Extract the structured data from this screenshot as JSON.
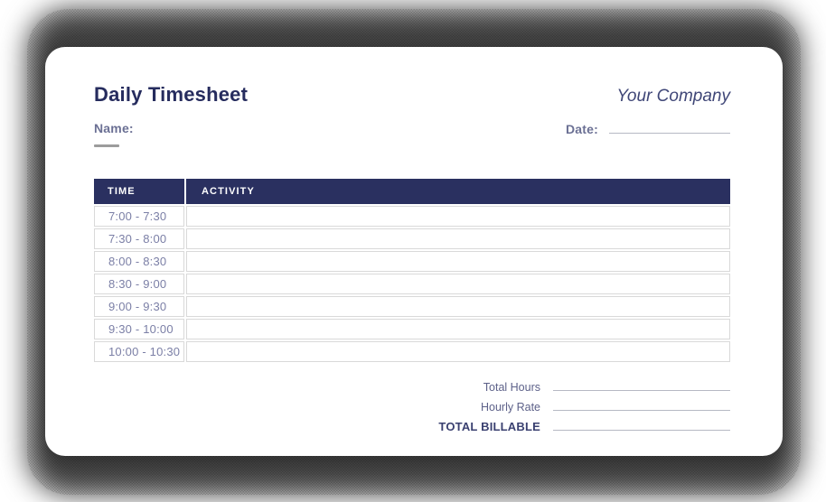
{
  "header": {
    "title": "Daily Timesheet",
    "company": "Your Company"
  },
  "fields": {
    "name": {
      "label": "Name:",
      "value": ""
    },
    "date": {
      "label": "Date:",
      "value": ""
    }
  },
  "table": {
    "columns": [
      {
        "key": "time",
        "label": "TIME"
      },
      {
        "key": "activity",
        "label": "ACTIVITY"
      }
    ],
    "rows": [
      {
        "time": "7:00 - 7:30",
        "activity": ""
      },
      {
        "time": "7:30 - 8:00",
        "activity": ""
      },
      {
        "time": "8:00 - 8:30",
        "activity": ""
      },
      {
        "time": "8:30 - 9:00",
        "activity": ""
      },
      {
        "time": "9:00 - 9:30",
        "activity": ""
      },
      {
        "time": "9:30 - 10:00",
        "activity": ""
      },
      {
        "time": "10:00 - 10:30",
        "activity": ""
      }
    ]
  },
  "totals": [
    {
      "label": "Total Hours",
      "value": "",
      "emphasis": false
    },
    {
      "label": "Hourly Rate",
      "value": "",
      "emphasis": false
    },
    {
      "label": "TOTAL BILLABLE",
      "value": "",
      "emphasis": true
    }
  ],
  "colors": {
    "header_navy": "#2a3060",
    "title_navy": "#262c5e",
    "company_indigo": "#3f4677",
    "muted_label": "#6b7094",
    "row_text": "#7b7fa6",
    "line_gray": "#b6b9c4",
    "row_border": "#d9d9d9",
    "dash_gray": "#9c9c9c",
    "total_label": "#5d6189",
    "total_strong": "#3a4070"
  }
}
